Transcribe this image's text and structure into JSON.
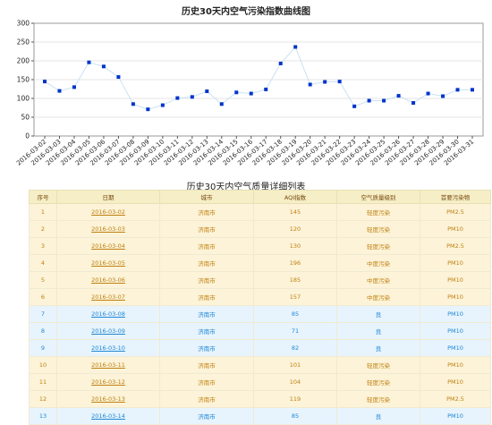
{
  "chart_data": {
    "type": "line",
    "title": "历史30天内空气污染指数曲线图",
    "ylim": [
      0,
      300
    ],
    "yticks": [
      0,
      50,
      100,
      150,
      200,
      250,
      300
    ],
    "grid": true,
    "legend": "none",
    "x": [
      "2016-03-02",
      "2016-03-03",
      "2016-03-04",
      "2016-03-05",
      "2016-03-06",
      "2016-03-07",
      "2016-03-08",
      "2016-03-09",
      "2016-03-10",
      "2016-03-11",
      "2016-03-12",
      "2016-03-13",
      "2016-03-14",
      "2016-03-15",
      "2016-03-16",
      "2016-03-17",
      "2016-03-18",
      "2016-03-19",
      "2016-03-20",
      "2016-03-21",
      "2016-03-22",
      "2016-03-23",
      "2016-03-24",
      "2016-03-25",
      "2016-03-26",
      "2016-03-27",
      "2016-03-28",
      "2016-03-29",
      "2016-03-30",
      "2016-03-31"
    ],
    "values": [
      145,
      120,
      130,
      196,
      185,
      157,
      85,
      71,
      82,
      101,
      104,
      119,
      85,
      116,
      113,
      124,
      193,
      237,
      137,
      144,
      145,
      79,
      94,
      94,
      107,
      88,
      113,
      106,
      123,
      123
    ],
    "line_color": "#c8e2f4",
    "marker_color": "#0033cc"
  },
  "table": {
    "title": "历史30天内空气质量详细列表",
    "headers": [
      "序号",
      "日期",
      "城市",
      "AQI指数",
      "空气质量级别",
      "首要污染物"
    ],
    "colors": {
      "orange_text": "#c08010",
      "blue_text": "#1e86d6",
      "header_bg": "#f5eec6"
    },
    "rows": [
      {
        "no": "1",
        "date": "2016-03-02",
        "city": "济南市",
        "aqi": "145",
        "level": "轻度污染",
        "pollutant": "PM2.5",
        "tone": "orange"
      },
      {
        "no": "2",
        "date": "2016-03-03",
        "city": "济南市",
        "aqi": "120",
        "level": "轻度污染",
        "pollutant": "PM10",
        "tone": "orange"
      },
      {
        "no": "3",
        "date": "2016-03-04",
        "city": "济南市",
        "aqi": "130",
        "level": "轻度污染",
        "pollutant": "PM2.5",
        "tone": "orange"
      },
      {
        "no": "4",
        "date": "2016-03-05",
        "city": "济南市",
        "aqi": "196",
        "level": "中度污染",
        "pollutant": "PM10",
        "tone": "orange"
      },
      {
        "no": "5",
        "date": "2016-03-06",
        "city": "济南市",
        "aqi": "185",
        "level": "中度污染",
        "pollutant": "PM10",
        "tone": "orange"
      },
      {
        "no": "6",
        "date": "2016-03-07",
        "city": "济南市",
        "aqi": "157",
        "level": "中度污染",
        "pollutant": "PM10",
        "tone": "orange"
      },
      {
        "no": "7",
        "date": "2016-03-08",
        "city": "济南市",
        "aqi": "85",
        "level": "良",
        "pollutant": "PM10",
        "tone": "blue"
      },
      {
        "no": "8",
        "date": "2016-03-09",
        "city": "济南市",
        "aqi": "71",
        "level": "良",
        "pollutant": "PM10",
        "tone": "blue"
      },
      {
        "no": "9",
        "date": "2016-03-10",
        "city": "济南市",
        "aqi": "82",
        "level": "良",
        "pollutant": "PM10",
        "tone": "blue"
      },
      {
        "no": "10",
        "date": "2016-03-11",
        "city": "济南市",
        "aqi": "101",
        "level": "轻度污染",
        "pollutant": "PM10",
        "tone": "orange"
      },
      {
        "no": "11",
        "date": "2016-03-12",
        "city": "济南市",
        "aqi": "104",
        "level": "轻度污染",
        "pollutant": "PM10",
        "tone": "orange"
      },
      {
        "no": "12",
        "date": "2016-03-13",
        "city": "济南市",
        "aqi": "119",
        "level": "轻度污染",
        "pollutant": "PM2.5",
        "tone": "orange"
      },
      {
        "no": "13",
        "date": "2016-03-14",
        "city": "济南市",
        "aqi": "85",
        "level": "良",
        "pollutant": "PM10",
        "tone": "blue"
      }
    ]
  }
}
